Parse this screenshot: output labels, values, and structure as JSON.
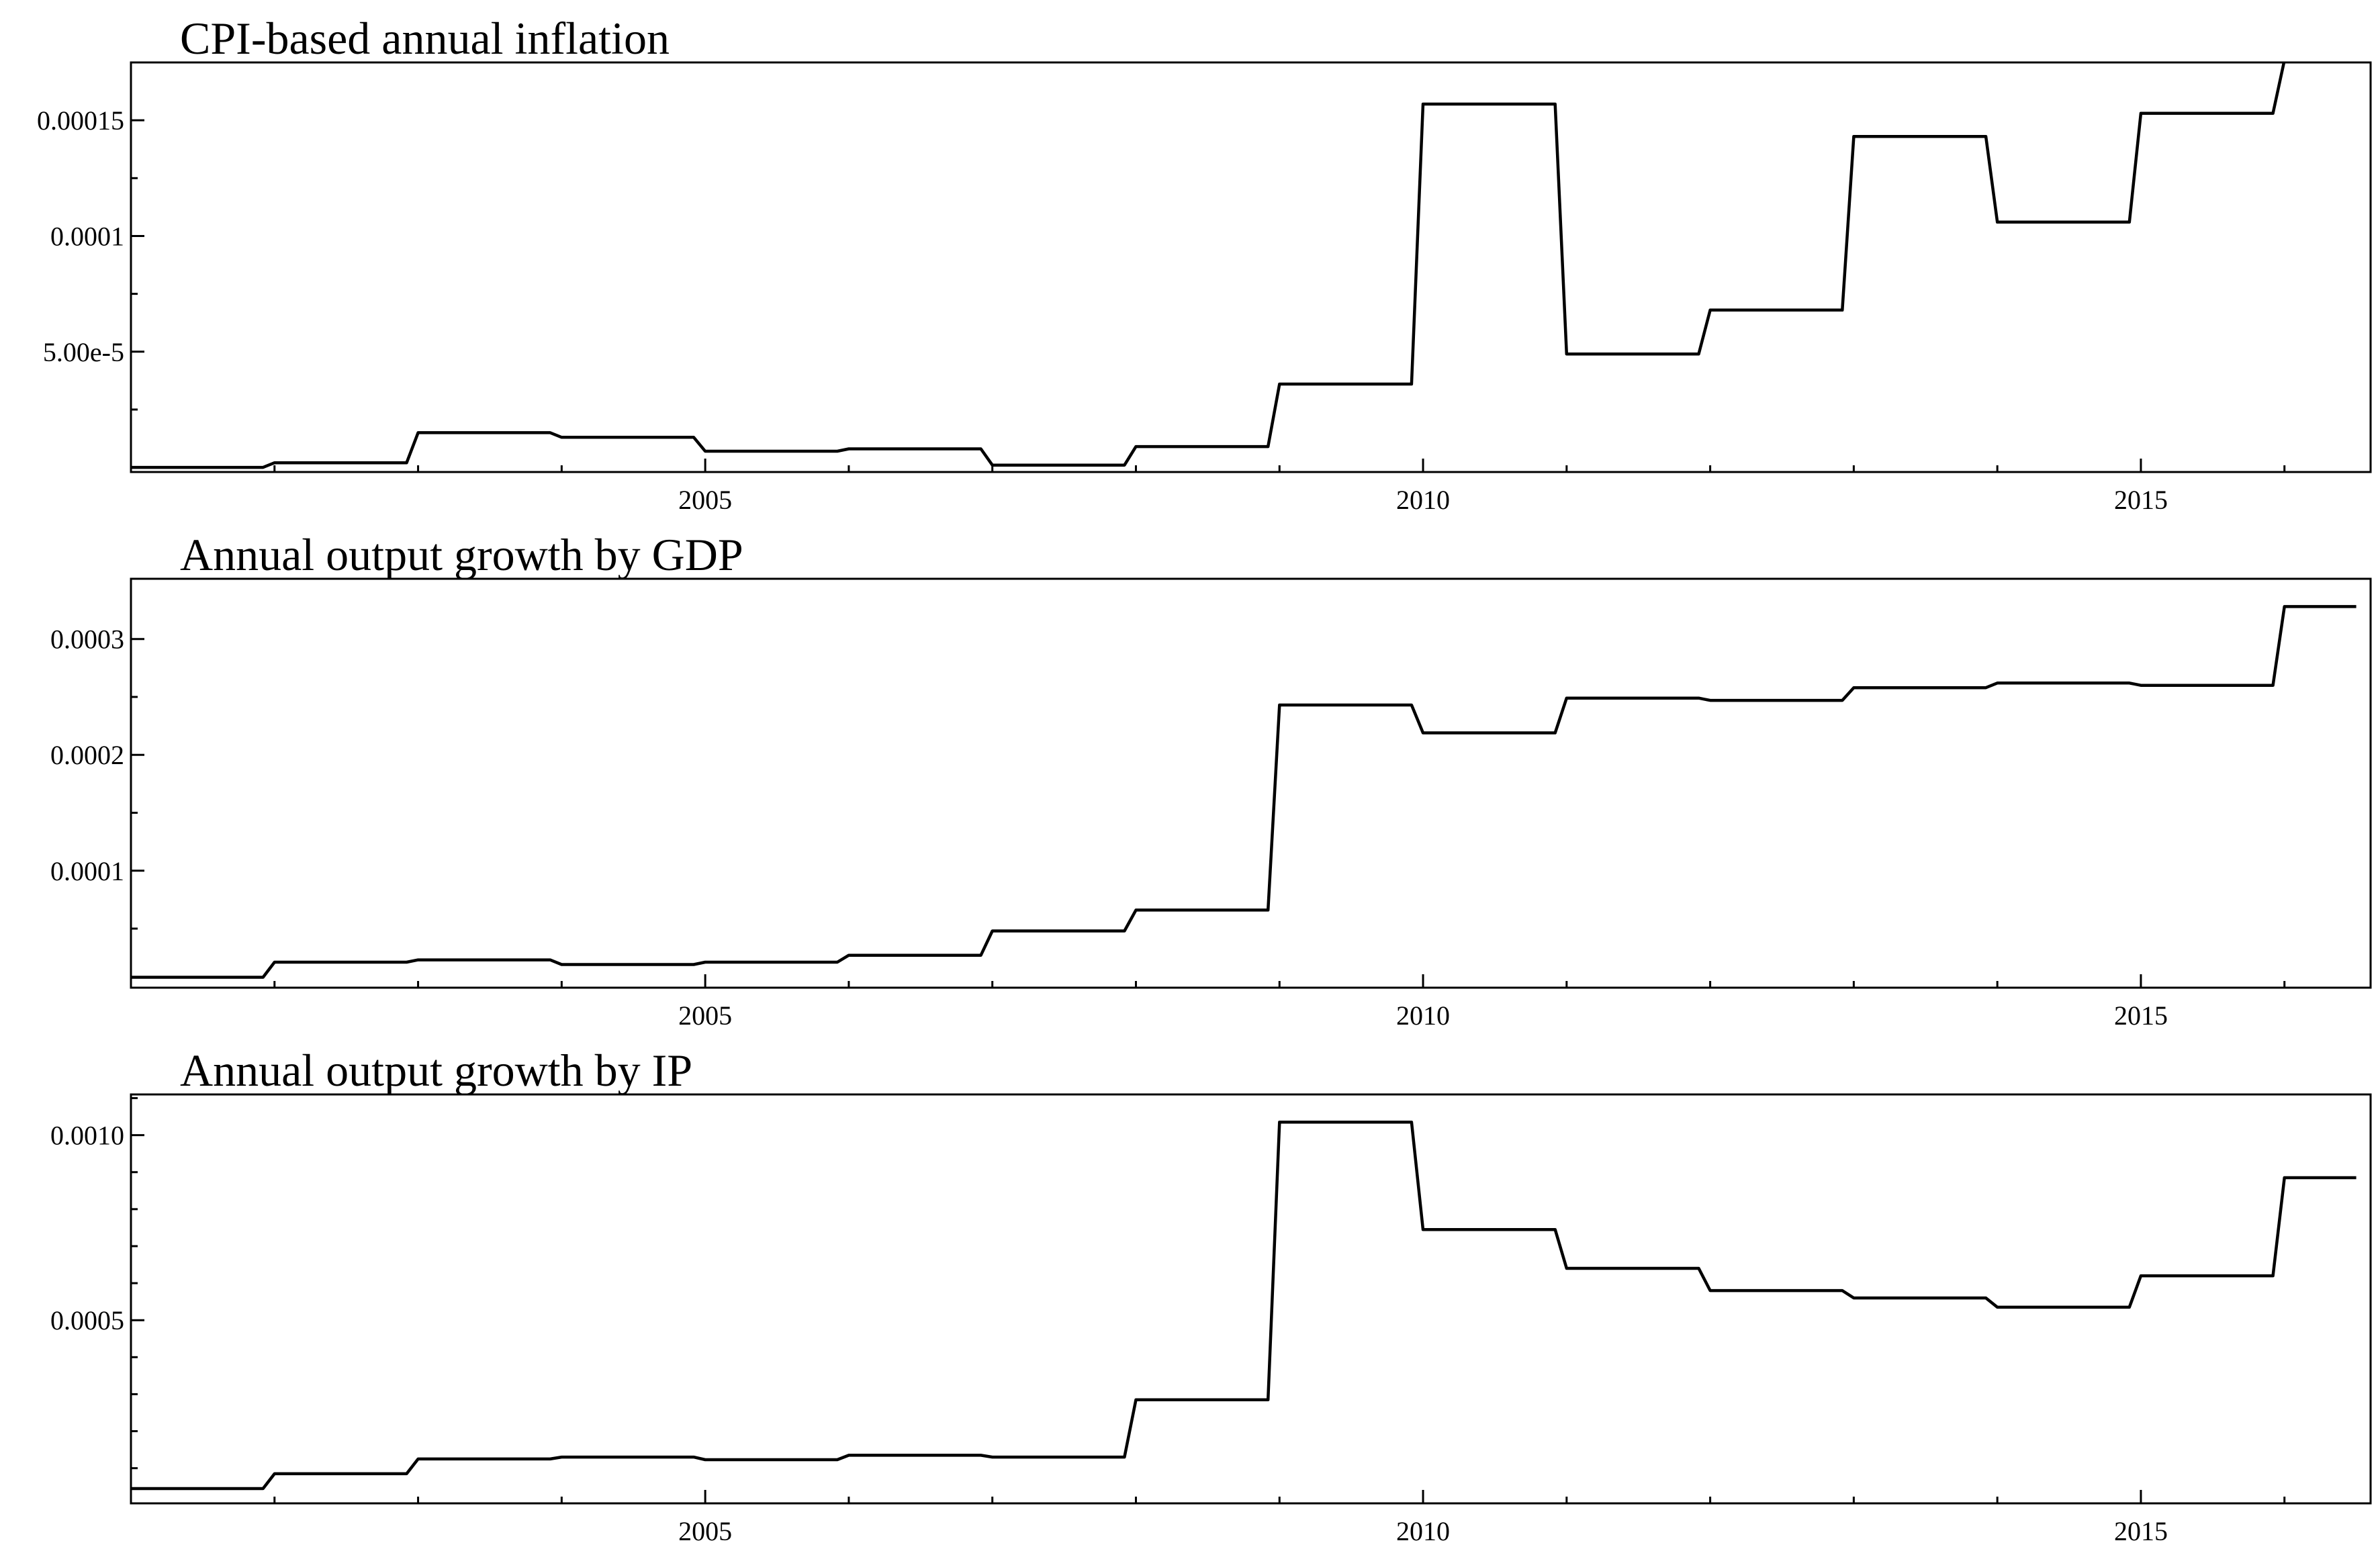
{
  "chart_data": [
    {
      "type": "line",
      "title": "CPI-based annual inflation",
      "xlabel": "",
      "ylabel": "",
      "xlim": [
        2001.0,
        2016.6
      ],
      "ylim": [
        -2e-06,
        0.000175
      ],
      "xticks": [
        {
          "value": 2005,
          "label": "2005"
        },
        {
          "value": 2010,
          "label": "2010"
        },
        {
          "value": 2015,
          "label": "2015"
        }
      ],
      "yticks": [
        {
          "value": 5e-05,
          "label": "5.00e-5"
        },
        {
          "value": 0.0001,
          "label": "0.0001"
        },
        {
          "value": 0.00015,
          "label": "0.00015"
        }
      ],
      "yminor": [
        2.5e-05,
        7.5e-05,
        0.000125
      ],
      "x": [
        2001.0,
        2001.92,
        2002.0,
        2002.92,
        2003.0,
        2003.92,
        2004.0,
        2004.92,
        2005.0,
        2005.92,
        2006.0,
        2006.92,
        2007.0,
        2007.92,
        2008.0,
        2008.92,
        2009.0,
        2009.92,
        2010.0,
        2010.92,
        2011.0,
        2011.92,
        2012.0,
        2012.92,
        2013.0,
        2013.92,
        2014.0,
        2014.92,
        2015.0,
        2015.92,
        2016.0,
        2016.5
      ],
      "values": [
        0.0,
        0.0,
        2e-06,
        2e-06,
        1.5e-05,
        1.5e-05,
        1.3e-05,
        1.3e-05,
        7e-06,
        7e-06,
        8e-06,
        8e-06,
        1e-06,
        1e-06,
        9e-06,
        9e-06,
        3.6e-05,
        3.6e-05,
        0.000157,
        0.000157,
        4.9e-05,
        4.9e-05,
        6.8e-05,
        6.8e-05,
        0.000143,
        0.000143,
        0.000106,
        0.000106,
        0.000153,
        0.000153,
        0.000176,
        0.000176
      ]
    },
    {
      "type": "line",
      "title": "Annual output growth by GDP",
      "xlabel": "",
      "ylabel": "",
      "xlim": [
        2001.0,
        2016.6
      ],
      "ylim": [
        -1e-06,
        0.000352
      ],
      "xticks": [
        {
          "value": 2005,
          "label": "2005"
        },
        {
          "value": 2010,
          "label": "2010"
        },
        {
          "value": 2015,
          "label": "2015"
        }
      ],
      "yticks": [
        {
          "value": 0.0001,
          "label": "0.0001"
        },
        {
          "value": 0.0002,
          "label": "0.0002"
        },
        {
          "value": 0.0003,
          "label": "0.0003"
        }
      ],
      "yminor": [
        5e-05,
        0.00015,
        0.00025
      ],
      "x": [
        2001.0,
        2001.92,
        2002.0,
        2002.92,
        2003.0,
        2003.92,
        2004.0,
        2004.92,
        2005.0,
        2005.92,
        2006.0,
        2006.92,
        2007.0,
        2007.92,
        2008.0,
        2008.92,
        2009.0,
        2009.92,
        2010.0,
        2010.92,
        2011.0,
        2011.92,
        2012.0,
        2012.92,
        2013.0,
        2013.92,
        2014.0,
        2014.92,
        2015.0,
        2015.92,
        2016.0,
        2016.5
      ],
      "values": [
        8e-06,
        8e-06,
        2.1e-05,
        2.1e-05,
        2.3e-05,
        2.3e-05,
        1.9e-05,
        1.9e-05,
        2.1e-05,
        2.1e-05,
        2.7e-05,
        2.7e-05,
        4.8e-05,
        4.8e-05,
        6.6e-05,
        6.6e-05,
        0.000243,
        0.000243,
        0.000219,
        0.000219,
        0.000249,
        0.000249,
        0.000247,
        0.000247,
        0.000258,
        0.000258,
        0.000262,
        0.000262,
        0.00026,
        0.00026,
        0.000328,
        0.000328
      ]
    },
    {
      "type": "line",
      "title": "Annual output growth by IP",
      "xlabel": "",
      "ylabel": "",
      "xlim": [
        2001.0,
        2016.6
      ],
      "ylim": [
        5e-06,
        0.00111
      ],
      "xticks": [
        {
          "value": 2005,
          "label": "2005"
        },
        {
          "value": 2010,
          "label": "2010"
        },
        {
          "value": 2015,
          "label": "2015"
        }
      ],
      "yticks": [
        {
          "value": 0.0005,
          "label": "0.0005"
        },
        {
          "value": 0.001,
          "label": "0.0010"
        }
      ],
      "yminor": [
        0.0001,
        0.0002,
        0.0003,
        0.0004,
        0.0006,
        0.0007,
        0.0008,
        0.0009,
        0.0011
      ],
      "x": [
        2001.0,
        2001.92,
        2002.0,
        2002.92,
        2003.0,
        2003.92,
        2004.0,
        2004.92,
        2005.0,
        2005.92,
        2006.0,
        2006.92,
        2007.0,
        2007.92,
        2008.0,
        2008.92,
        2009.0,
        2009.92,
        2010.0,
        2010.92,
        2011.0,
        2011.92,
        2012.0,
        2012.92,
        2013.0,
        2013.92,
        2014.0,
        2014.92,
        2015.0,
        2015.92,
        2016.0,
        2016.5
      ],
      "values": [
        4.5e-05,
        4.5e-05,
        8.5e-05,
        8.5e-05,
        0.000125,
        0.000125,
        0.00013,
        0.00013,
        0.000123,
        0.000123,
        0.000135,
        0.000135,
        0.00013,
        0.00013,
        0.000285,
        0.000285,
        0.001035,
        0.001035,
        0.000745,
        0.000745,
        0.00064,
        0.00064,
        0.00058,
        0.00058,
        0.00056,
        0.00056,
        0.000535,
        0.000535,
        0.00062,
        0.00062,
        0.000885,
        0.000885
      ]
    }
  ]
}
